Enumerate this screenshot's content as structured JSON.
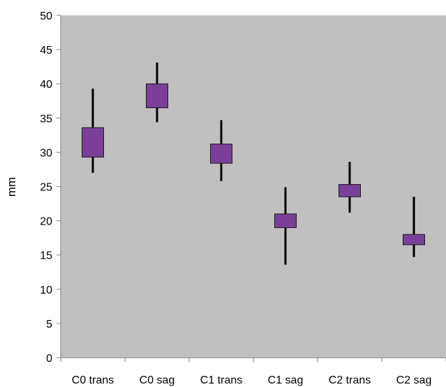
{
  "chart_data": {
    "type": "boxplot",
    "title": "",
    "xlabel": "",
    "ylabel": "mm",
    "ylim": [
      0,
      50
    ],
    "y_ticks": [
      0,
      5,
      10,
      15,
      20,
      25,
      30,
      35,
      40,
      45,
      50
    ],
    "grid": false,
    "legend": "none",
    "categories": [
      "C0 trans",
      "C0 sag",
      "C1 trans",
      "C1 sag",
      "C2 trans",
      "C2 sag"
    ],
    "boxes": [
      {
        "min": 27.0,
        "q1": 29.3,
        "q3": 33.6,
        "max": 39.3
      },
      {
        "min": 34.4,
        "q1": 36.5,
        "q3": 40.0,
        "max": 43.1
      },
      {
        "min": 25.8,
        "q1": 28.4,
        "q3": 31.2,
        "max": 34.7
      },
      {
        "min": 13.6,
        "q1": 19.0,
        "q3": 21.0,
        "max": 24.9
      },
      {
        "min": 21.2,
        "q1": 23.5,
        "q3": 25.3,
        "max": 28.6
      },
      {
        "min": 14.7,
        "q1": 16.5,
        "q3": 18.0,
        "max": 23.5
      }
    ],
    "colors": {
      "plot_background": "#c0c0c0",
      "box_fill": "#7b3f9a",
      "box_stroke": "#1a1a1a",
      "whisker": "#000000",
      "axis": "#808080"
    }
  }
}
